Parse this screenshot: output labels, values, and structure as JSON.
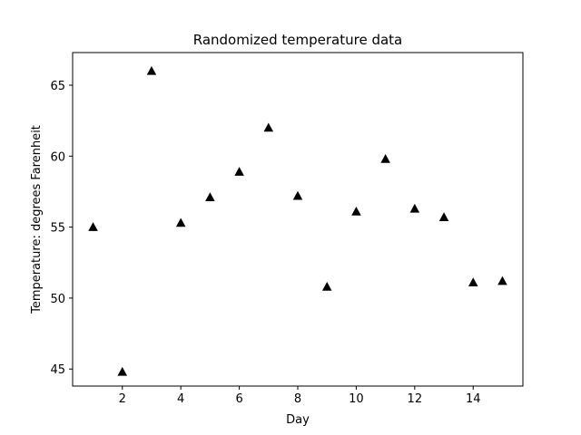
{
  "chart_data": {
    "type": "scatter",
    "title": "Randomized temperature data",
    "xlabel": "Day",
    "ylabel": "Temperature: degrees Farenheit",
    "x": [
      1,
      2,
      3,
      4,
      5,
      6,
      7,
      8,
      9,
      10,
      11,
      12,
      13,
      14,
      15
    ],
    "y": [
      55.0,
      44.8,
      66.0,
      55.3,
      57.1,
      58.9,
      62.0,
      57.2,
      50.8,
      56.1,
      59.8,
      56.3,
      55.7,
      51.1,
      51.2
    ],
    "xlim": [
      0.3,
      15.7
    ],
    "ylim": [
      43.8,
      67.3
    ],
    "xticks": [
      2,
      4,
      6,
      8,
      10,
      12,
      14
    ],
    "yticks": [
      45,
      50,
      55,
      60,
      65
    ],
    "marker": "triangle",
    "marker_color": "#000000",
    "grid": false,
    "legend": false
  }
}
